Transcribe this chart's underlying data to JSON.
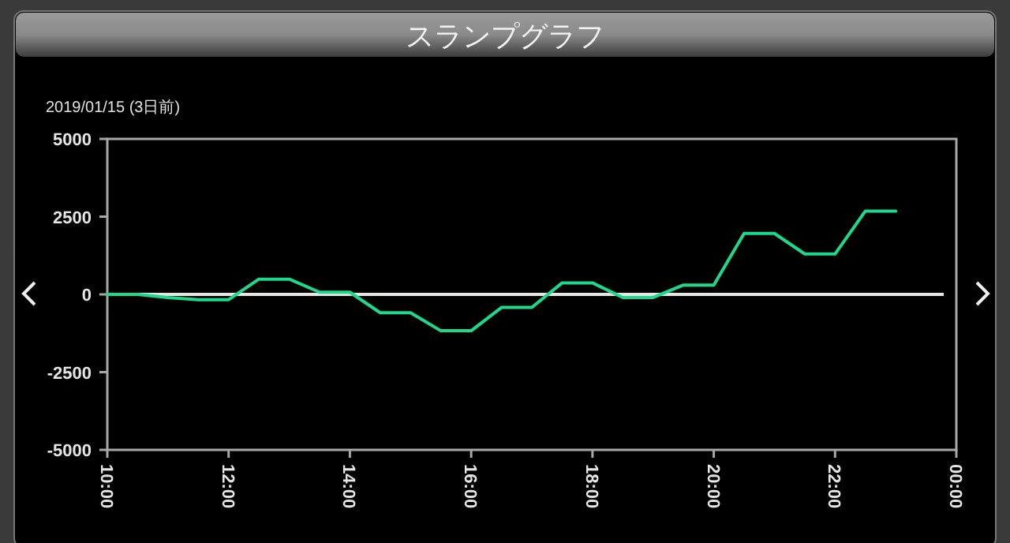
{
  "chart_data": {
    "type": "line",
    "title": "スランプグラフ",
    "subtitle": "2019/01/15 (3日前)",
    "x": [
      10,
      10.5,
      11,
      11.5,
      12,
      12.5,
      13,
      13.5,
      14,
      14.5,
      15,
      15.5,
      16,
      16.5,
      17,
      17.5,
      18,
      18.5,
      19,
      19.5,
      20,
      20.5,
      21,
      21.5,
      22,
      22.5,
      23
    ],
    "series": [
      {
        "color": "#1ed88c",
        "values": [
          0,
          0,
          -100,
          -170,
          -170,
          490,
          490,
          70,
          70,
          -590,
          -590,
          -1170,
          -1170,
          -420,
          -420,
          370,
          370,
          -100,
          -100,
          300,
          300,
          1960,
          1960,
          1300,
          1300,
          2680,
          2680
        ]
      }
    ],
    "xlim": [
      10,
      24
    ],
    "xticks": [
      {
        "value": 10,
        "label": "10:00"
      },
      {
        "value": 12,
        "label": "12:00"
      },
      {
        "value": 14,
        "label": "14:00"
      },
      {
        "value": 16,
        "label": "16:00"
      },
      {
        "value": 18,
        "label": "18:00"
      },
      {
        "value": 20,
        "label": "20:00"
      },
      {
        "value": 22,
        "label": "22:00"
      },
      {
        "value": 24,
        "label": "00:00"
      }
    ],
    "ylim": [
      -5000,
      5000
    ],
    "yticks": [
      -5000,
      -2500,
      0,
      2500,
      5000
    ],
    "ref_lines": [
      {
        "axis": "y",
        "value": 0,
        "color": "#e6e6e6"
      }
    ],
    "grid": false,
    "marker": "none",
    "line_style": "solid"
  }
}
